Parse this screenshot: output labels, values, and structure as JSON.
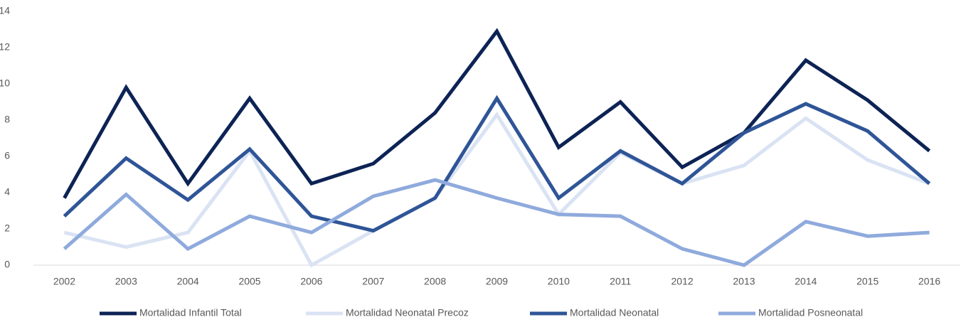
{
  "chart_data": {
    "type": "line",
    "categories": [
      "2002",
      "2003",
      "2004",
      "2005",
      "2006",
      "2007",
      "2008",
      "2009",
      "2010",
      "2011",
      "2012",
      "2013",
      "2014",
      "2015",
      "2016"
    ],
    "series": [
      {
        "name": "Mortalidad Infantil Total",
        "color": "#0d2355",
        "values": [
          3.7,
          9.8,
          4.5,
          9.2,
          4.5,
          5.6,
          8.4,
          12.9,
          6.5,
          9.0,
          5.4,
          7.3,
          11.3,
          9.1,
          6.3
        ]
      },
      {
        "name": "Mortalidad Neonatal Precoz",
        "color": "#dae3f3",
        "values": [
          1.8,
          1.0,
          1.8,
          6.3,
          0.0,
          1.9,
          3.7,
          8.3,
          2.8,
          6.2,
          4.5,
          5.5,
          8.1,
          5.8,
          4.5
        ]
      },
      {
        "name": "Mortalidad Neonatal",
        "color": "#2f5597",
        "values": [
          2.7,
          5.9,
          3.6,
          6.4,
          2.7,
          1.9,
          3.7,
          9.2,
          3.7,
          6.3,
          4.5,
          7.3,
          8.9,
          7.4,
          4.5
        ]
      },
      {
        "name": "Mortalidad Posneonatal",
        "color": "#8faadc",
        "values": [
          0.9,
          3.9,
          0.9,
          2.7,
          1.8,
          3.8,
          4.7,
          3.7,
          2.8,
          2.7,
          0.9,
          0.0,
          2.4,
          1.6,
          1.8
        ]
      }
    ],
    "ylim": [
      0,
      14
    ],
    "yticks": [
      0,
      2,
      4,
      6,
      8,
      10,
      12,
      14
    ],
    "grid": false,
    "legend": "bottom"
  }
}
